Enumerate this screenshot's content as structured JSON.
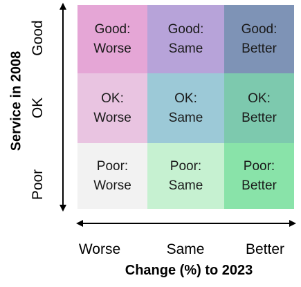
{
  "colors": {
    "cell_colors": [
      [
        "#e5a6d6",
        "#b7a3d9",
        "#7e93b6"
      ],
      [
        "#e9c4e1",
        "#9cc9d7",
        "#7dc9ae"
      ],
      [
        "#f2f2f2",
        "#c6f1d1",
        "#89e3a9"
      ]
    ],
    "axis": "#000000"
  },
  "y_axis": {
    "title": "Service in 2008",
    "ticks": [
      "Good",
      "OK",
      "Poor"
    ]
  },
  "x_axis": {
    "title": "Change (%) to 2023",
    "ticks": [
      "Worse",
      "Same",
      "Better"
    ]
  },
  "cells": [
    [
      {
        "line1": "Good:",
        "line2": "Worse"
      },
      {
        "line1": "Good:",
        "line2": "Same"
      },
      {
        "line1": "Good:",
        "line2": "Better"
      }
    ],
    [
      {
        "line1": "OK:",
        "line2": "Worse"
      },
      {
        "line1": "OK:",
        "line2": "Same"
      },
      {
        "line1": "OK:",
        "line2": "Better"
      }
    ],
    [
      {
        "line1": "Poor:",
        "line2": "Worse"
      },
      {
        "line1": "Poor:",
        "line2": "Same"
      },
      {
        "line1": "Poor:",
        "line2": "Better"
      }
    ]
  ]
}
